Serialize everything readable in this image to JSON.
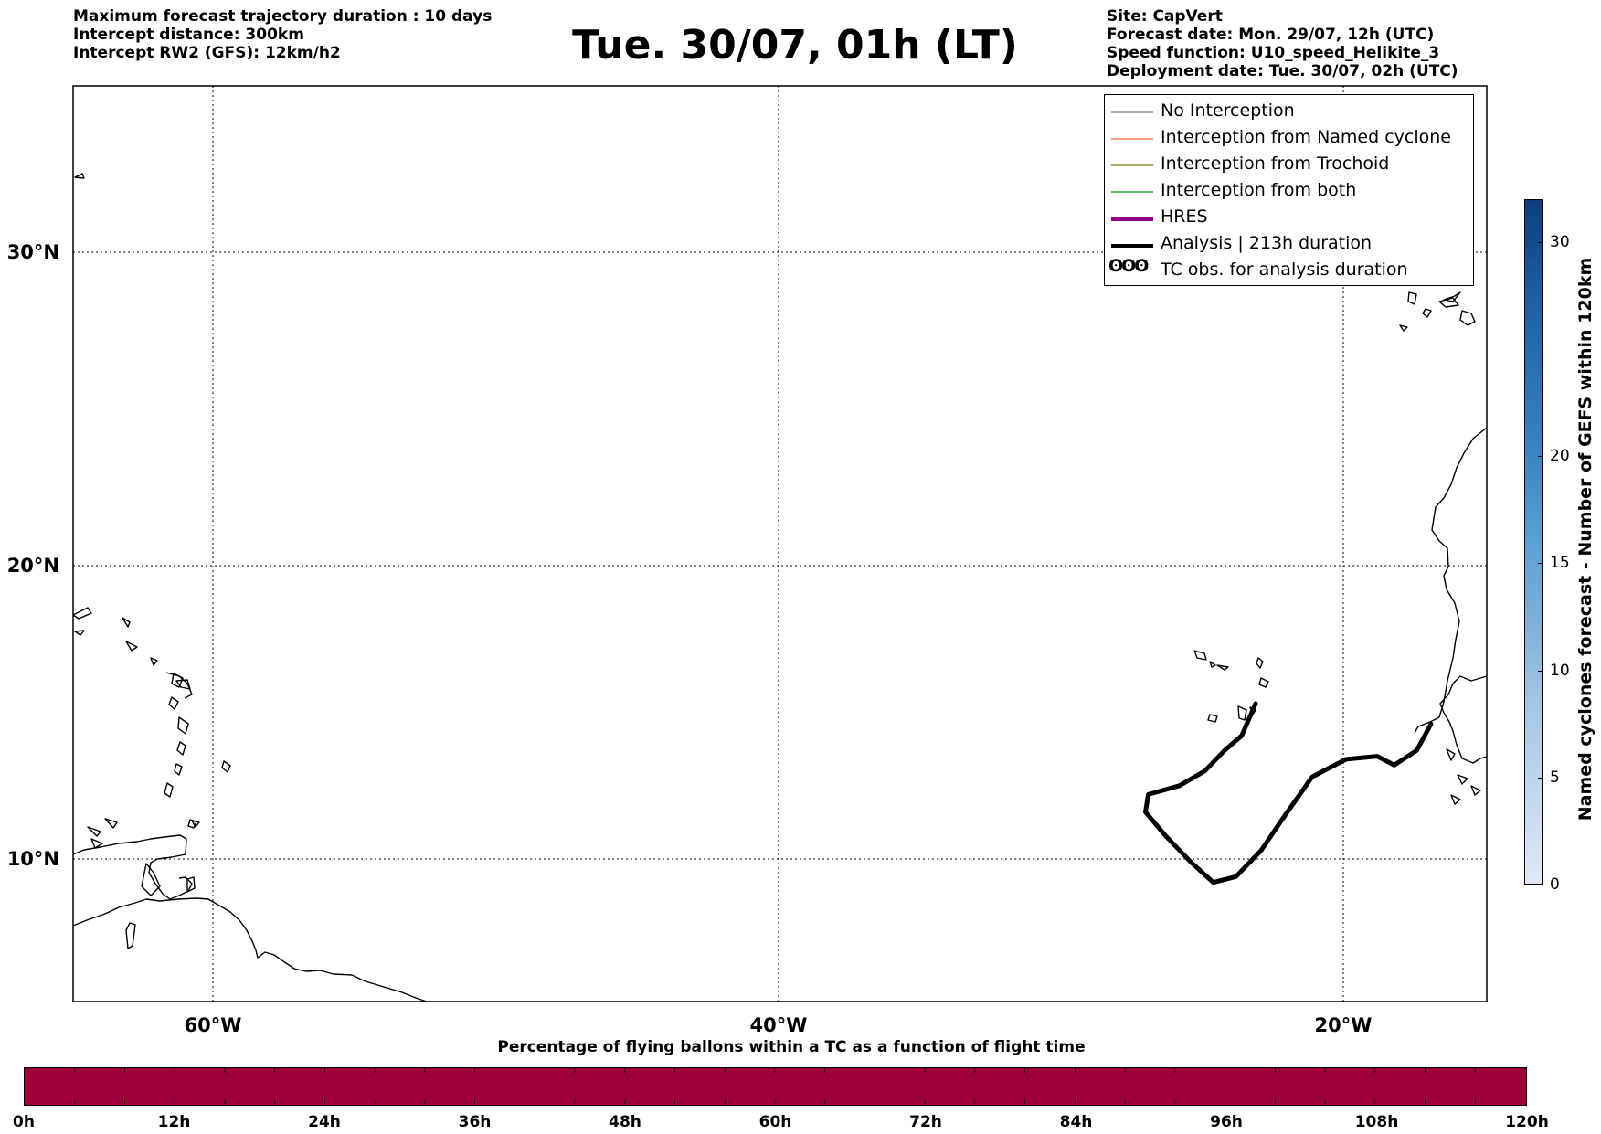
{
  "header": {
    "left_lines": [
      "Maximum forecast trajectory duration : 10 days",
      "Intercept distance: 300km",
      "Intercept RW2 (GFS):  12km/h2"
    ],
    "title": "Tue. 30/07, 01h (LT)",
    "right_lines": [
      "Site: CapVert",
      "Forecast date: Mon. 29/07, 12h (UTC)",
      "Speed function: U10_speed_Helikite_3",
      "Deployment date: Tue. 30/07, 02h (UTC)"
    ]
  },
  "map": {
    "lon_range": [
      -65,
      -15
    ],
    "lat_range": [
      5.5,
      34.5
    ],
    "lat_labels": [
      "30°N",
      "20°N",
      "10°N"
    ],
    "lon_labels": [
      "60°W",
      "40°W",
      "20°W"
    ],
    "gridlines": "dotted",
    "analysis_track": [
      [
        -23.1,
        15.3
      ],
      [
        -23.6,
        14.2
      ],
      [
        -24.2,
        13.7
      ],
      [
        -24.9,
        13.0
      ],
      [
        -25.8,
        12.5
      ],
      [
        -26.9,
        12.2
      ],
      [
        -27.0,
        11.6
      ],
      [
        -26.3,
        10.8
      ],
      [
        -25.4,
        9.9
      ],
      [
        -24.6,
        9.2
      ],
      [
        -23.8,
        9.4
      ],
      [
        -22.9,
        10.3
      ],
      [
        -22.2,
        11.3
      ],
      [
        -21.1,
        12.8
      ],
      [
        -19.9,
        13.4
      ],
      [
        -18.8,
        13.5
      ],
      [
        -18.2,
        13.2
      ],
      [
        -17.4,
        13.7
      ],
      [
        -16.9,
        14.6
      ]
    ]
  },
  "legend": {
    "items": [
      {
        "label": "No Interception",
        "color": "#7f7f7f",
        "width": 1
      },
      {
        "label": "Interception from Named cyclone",
        "color": "#ff7f50",
        "width": 1.5
      },
      {
        "label": "Interception from Trochoid",
        "color": "#8b8b2a",
        "width": 1.5
      },
      {
        "label": "Interception from both",
        "color": "#2ca02c",
        "width": 1.5
      },
      {
        "label": "HRES",
        "color": "#8b008b",
        "width": 4
      },
      {
        "label": "Analysis | 213h duration",
        "color": "#000000",
        "width": 4
      },
      {
        "label": "TC obs. for analysis duration",
        "symbol": "ʘʘʘ"
      }
    ]
  },
  "colorbar": {
    "label": "Named cyclones forecast - Number of GEFS within 120km",
    "range": [
      0,
      32
    ],
    "ticks": [
      "0",
      "5",
      "10",
      "15",
      "20",
      "30"
    ],
    "tick_values": [
      0,
      5,
      10,
      15,
      20,
      30
    ]
  },
  "time_bar": {
    "title": "Percentage of flying ballons within a TC as a function of flight time",
    "ticks": [
      "0h",
      "12h",
      "24h",
      "36h",
      "48h",
      "60h",
      "72h",
      "84h",
      "96h",
      "108h",
      "120h"
    ],
    "fill_color": "#9e003a"
  }
}
